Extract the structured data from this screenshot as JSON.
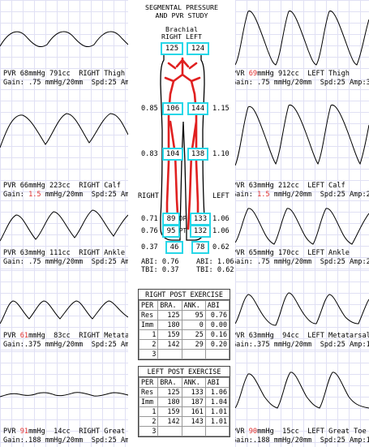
{
  "header": {
    "title_line1": "SEGMENTAL PRESSURE",
    "title_line2": "AND PVR STUDY"
  },
  "brachial": {
    "label": "Brachial",
    "right_label": "RIGHT",
    "left_label": "LEFT",
    "right_value": "125",
    "left_value": "124"
  },
  "pressures": {
    "thigh": {
      "right": "106",
      "left": "144",
      "right_index": "0.85",
      "left_index": "1.15"
    },
    "calf": {
      "right": "104",
      "left": "138",
      "right_index": "0.83",
      "left_index": "1.10"
    },
    "dp": {
      "label": "DP",
      "right": "89",
      "left": "133",
      "right_index": "0.71",
      "left_index": "1.06"
    },
    "pt": {
      "label": "PT",
      "right": "95",
      "left": "132",
      "right_index": "0.76",
      "left_index": "1.06"
    },
    "toe": {
      "right": "46",
      "left": "78",
      "right_index": "0.37",
      "left_index": "0.62"
    }
  },
  "side_labels": {
    "right": "RIGHT",
    "left": "LEFT"
  },
  "indices": {
    "right_abi": "ABI: 0.76",
    "right_tbi": "TBI: 0.37",
    "left_abi": "ABI: 1.06",
    "left_tbi": "TBI: 0.62"
  },
  "panels": {
    "right_thigh": {
      "pvr": "PVR",
      "mmhg": "68mmHg",
      "cc": "791cc",
      "site": "RIGHT Thigh",
      "gain_label": "Gain:",
      "gain": ".75",
      "gain_unit": "mmHg/20mm",
      "spd": "Spd:25",
      "amp": "Amp:14"
    },
    "left_thigh": {
      "pvr": "PVR",
      "mmhg": "69",
      "mmhg_unit": "mmHg",
      "cc": "912cc",
      "site": "LEFT Thigh",
      "gain_label": "Gain:",
      "gain": ".75",
      "gain_unit": "mmHg/20mm",
      "spd": "Spd:25",
      "amp": "Amp:33"
    },
    "right_calf": {
      "pvr": "PVR",
      "mmhg": "66mmHg",
      "cc": "223cc",
      "site": "RIGHT Calf",
      "gain_label": "Gain:",
      "gain": "1.5",
      "gain_unit": "mmHg/20mm",
      "spd": "Spd:25",
      "amp": "Amp:13"
    },
    "left_calf": {
      "pvr": "PVR",
      "mmhg": "63mmHg",
      "cc": "212cc",
      "site": "LEFT Calf",
      "gain_label": "Gain:",
      "gain": "1.5",
      "gain_unit": "mmHg/20mm",
      "spd": "Spd:25",
      "amp": "Amp:28"
    },
    "right_ankle": {
      "pvr": "PVR",
      "mmhg": "63mmHg",
      "cc": "111cc",
      "site": "RIGHT Ankle",
      "gain_label": "Gain:",
      "gain": ".75",
      "gain_unit": "mmHg/20mm",
      "spd": "Spd:25",
      "amp": "Amp:20"
    },
    "left_ankle": {
      "pvr": "PVR",
      "mmhg": "65mmHg",
      "cc": "170cc",
      "site": "LEFT Ankle",
      "gain_label": "Gain:",
      "gain": ".75",
      "gain_unit": "mmHg/20mm",
      "spd": "Spd:25",
      "amp": "Amp:26"
    },
    "right_met": {
      "pvr": "PVR",
      "mmhg": "61",
      "mmhg_unit": "mmHg",
      "cc": "83cc",
      "site": "RIGHT Metatarsal",
      "gain_label": "Gain:",
      "gain": ".375",
      "gain_unit": "mmHg/20mm",
      "spd": "Spd:25",
      "amp": "Amp:06"
    },
    "left_met": {
      "pvr": "PVR",
      "mmhg": "63mmHg",
      "cc": "94cc",
      "site": "LEFT Metatarsal",
      "gain_label": "Gain:",
      "gain": ".375",
      "gain_unit": "mmHg/20mm",
      "spd": "Spd:25",
      "amp": "Amp:16"
    },
    "right_toe": {
      "pvr": "PVR",
      "mmhg": "91",
      "mmhg_unit": "mmHg",
      "cc": "14cc",
      "site": "RIGHT Great Toe",
      "gain_label": "Gain:",
      "gain": ".188",
      "gain_unit": "mmHg/20mm",
      "spd": "Spd:25",
      "amp": "Amp:02"
    },
    "left_toe": {
      "pvr": "PVR",
      "mmhg": "90",
      "mmhg_unit": "mmHg",
      "cc": "15cc",
      "site": "LEFT Great Toe",
      "gain_label": "Gain:",
      "gain": ".188",
      "gain_unit": "mmHg/20mm",
      "spd": "Spd:25",
      "amp": "Amp:14"
    }
  },
  "right_exercise": {
    "title": "RIGHT POST EXERCISE",
    "headers": [
      "PER",
      "BRA.",
      "ANK.",
      "ABI"
    ],
    "rows": [
      [
        "Res",
        "125",
        "95",
        "0.76"
      ],
      [
        "Imm",
        "180",
        "0",
        "0.00"
      ],
      [
        "1",
        "159",
        "25",
        "0.16"
      ],
      [
        "2",
        "142",
        "29",
        "0.20"
      ],
      [
        "3",
        "",
        "",
        ""
      ]
    ]
  },
  "left_exercise": {
    "title": "LEFT POST EXERCISE",
    "headers": [
      "PER",
      "BRA.",
      "ANK.",
      "ABI"
    ],
    "rows": [
      [
        "Res",
        "125",
        "133",
        "1.06"
      ],
      [
        "Imm",
        "180",
        "187",
        "1.04"
      ],
      [
        "1",
        "159",
        "161",
        "1.01"
      ],
      [
        "2",
        "142",
        "143",
        "1.01"
      ],
      [
        "3",
        "",
        "",
        ""
      ]
    ]
  },
  "colors": {
    "cyan_box": "#27d7e8",
    "artery_red": "#e02020",
    "highlight_red": "#e03030",
    "grid": "#e0e0f4"
  }
}
